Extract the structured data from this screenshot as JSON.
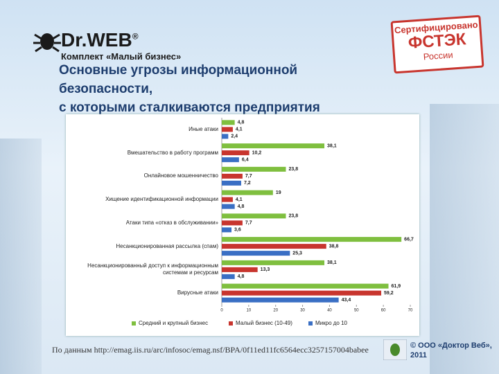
{
  "header": {
    "logo": "Dr.WEB",
    "logo_mark": "®",
    "kit": "Комплект «Малый бизнес»",
    "title_lines": [
      "Основные угрозы информационной",
      "безопасности,",
      "с которыми сталкиваются предприятия"
    ]
  },
  "stamp": {
    "lines": [
      "Сертифицировано",
      "ФСТЭК",
      "России"
    ]
  },
  "footer": {
    "source": "По данным http://emag.iis.ru/arc/infosoc/emag.nsf/BPA/0f11ed11fc6564ecc3257157004babee",
    "copyright": "© ООО «Доктор Веб»,",
    "year": "2011"
  },
  "chart_data": {
    "type": "hbar",
    "categories": [
      "Иные атаки",
      "Вмешательство в работу программ",
      "Онлайновое мошенничество",
      "Хищение идентификационной информации",
      "Атаки типа «отказ в обслуживании»",
      "Несанкционированная рассылка (спам)",
      "Несанкционированный доступ к информационным системам и ресурсам",
      "Вирусные атаки"
    ],
    "series": [
      {
        "name": "Средний и крупный бизнес",
        "color": "#7fbf3f",
        "values": [
          4.8,
          38.1,
          23.8,
          19,
          23.8,
          66.7,
          38.1,
          61.9
        ],
        "value_labels": [
          "4,8",
          "38,1",
          "23,8",
          "19",
          "23,8",
          "66,7",
          "38,1",
          "61,9"
        ]
      },
      {
        "name": "Малый бизнес (10-49)",
        "color": "#c8352e",
        "values": [
          4.1,
          10.2,
          7.7,
          4.1,
          7.7,
          38.8,
          13.3,
          59.2
        ],
        "value_labels": [
          "4,1",
          "10,2",
          "7,7",
          "4,1",
          "7,7",
          "38,8",
          "13,3",
          "59,2"
        ]
      },
      {
        "name": "Микро до 10",
        "color": "#3a6fc4",
        "values": [
          2.4,
          6.4,
          7.2,
          4.8,
          3.6,
          25.3,
          4.8,
          43.4
        ],
        "value_labels": [
          "2,4",
          "6,4",
          "7,2",
          "4,8",
          "3,6",
          "25,3",
          "4,8",
          "43,4"
        ]
      }
    ],
    "xlim": [
      0,
      70
    ],
    "xticks": [
      0,
      10,
      20,
      30,
      40,
      50,
      60,
      70
    ],
    "grid": false,
    "legend": "bottom"
  }
}
